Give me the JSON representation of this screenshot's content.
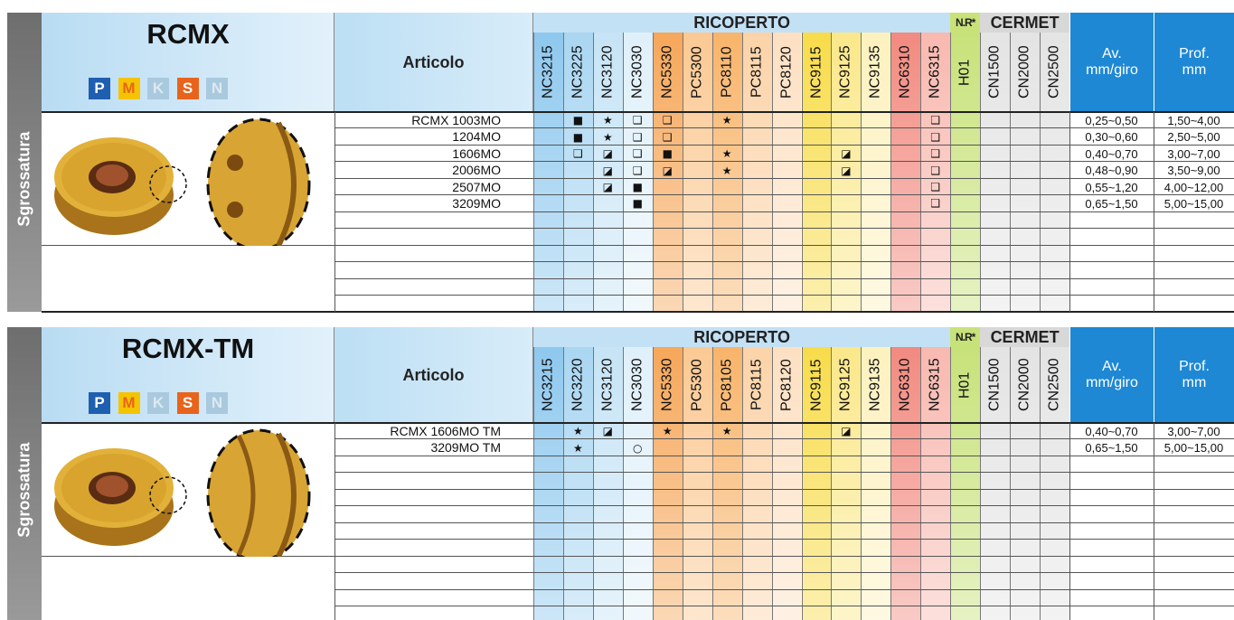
{
  "blocks": [
    {
      "side": "Sgrossatura",
      "title": "RCMX",
      "materials": [
        "P",
        "M",
        "K",
        "S",
        "N"
      ],
      "article_header": "Articolo",
      "groups": [
        "RICOPERTO",
        "N.R*",
        "CERMET"
      ],
      "grades": [
        "NC3215",
        "NC3225",
        "NC3120",
        "NC3030",
        "NC5330",
        "PC5300",
        "PC8110",
        "PC8115",
        "PC8120",
        "NC9115",
        "NC9125",
        "NC9135",
        "NC6310",
        "NC6315",
        "H01",
        "CN1500",
        "CN2000",
        "CN2500"
      ],
      "av_header": [
        "Av.",
        "mm/giro"
      ],
      "prof_header": [
        "Prof.",
        "mm"
      ],
      "rows": [
        {
          "article": "RCMX 1003MO",
          "cells": [
            null,
            "■",
            "★",
            "❑",
            "❑",
            null,
            "★",
            null,
            null,
            null,
            null,
            null,
            null,
            "❑",
            null,
            null,
            null,
            null
          ],
          "av": "0,25~0,50",
          "prof": "1,50~4,00"
        },
        {
          "article": "1204MO",
          "cells": [
            null,
            "■",
            "★",
            "❑",
            "❑",
            null,
            null,
            null,
            null,
            null,
            null,
            null,
            null,
            "❑",
            null,
            null,
            null,
            null
          ],
          "av": "0,30~0,60",
          "prof": "2,50~5,00"
        },
        {
          "article": "1606MO",
          "cells": [
            null,
            "❑",
            "◪",
            "❑",
            "■",
            null,
            "★",
            null,
            null,
            null,
            "◪",
            null,
            null,
            "❑",
            null,
            null,
            null,
            null
          ],
          "av": "0,40~0,70",
          "prof": "3,00~7,00"
        },
        {
          "article": "2006MO",
          "cells": [
            null,
            null,
            "◪",
            "❑",
            "◪",
            null,
            "★",
            null,
            null,
            null,
            "◪",
            null,
            null,
            "❑",
            null,
            null,
            null,
            null
          ],
          "av": "0,48~0,90",
          "prof": "3,50~9,00"
        },
        {
          "article": "2507MO",
          "cells": [
            null,
            null,
            "◪",
            "■",
            null,
            null,
            null,
            null,
            null,
            null,
            null,
            null,
            null,
            "❑",
            null,
            null,
            null,
            null
          ],
          "av": "0,55~1,20",
          "prof": "4,00~12,00"
        },
        {
          "article": "3209MO",
          "cells": [
            null,
            null,
            null,
            "■",
            null,
            null,
            null,
            null,
            null,
            null,
            null,
            null,
            null,
            "❑",
            null,
            null,
            null,
            null
          ],
          "av": "0,65~1,50",
          "prof": "5,00~15,00"
        }
      ]
    },
    {
      "side": "Sgrossatura",
      "title": "RCMX-TM",
      "materials": [
        "P",
        "M",
        "K",
        "S",
        "N"
      ],
      "article_header": "Articolo",
      "groups": [
        "RICOPERTO",
        "N.R*",
        "CERMET"
      ],
      "grades": [
        "NC3215",
        "NC3220",
        "NC3120",
        "NC3030",
        "NC5330",
        "PC5300",
        "PC8105",
        "PC8115",
        "PC8120",
        "NC9115",
        "NC9125",
        "NC9135",
        "NC6310",
        "NC6315",
        "H01",
        "CN1500",
        "CN2000",
        "CN2500"
      ],
      "av_header": [
        "Av.",
        "mm/giro"
      ],
      "prof_header": [
        "Prof.",
        "mm"
      ],
      "rows": [
        {
          "article": "RCMX 1606MO TM",
          "cells": [
            null,
            "★",
            "◪",
            null,
            "★",
            null,
            "★",
            null,
            null,
            null,
            "◪",
            null,
            null,
            null,
            null,
            null,
            null,
            null
          ],
          "av": "0,40~0,70",
          "prof": "3,00~7,00"
        },
        {
          "article": "3209MO TM",
          "cells": [
            null,
            "★",
            null,
            "○",
            null,
            null,
            null,
            null,
            null,
            null,
            null,
            null,
            null,
            null,
            null,
            null,
            null,
            null
          ],
          "av": "0,65~1,50",
          "prof": "5,00~15,00"
        }
      ]
    }
  ]
}
